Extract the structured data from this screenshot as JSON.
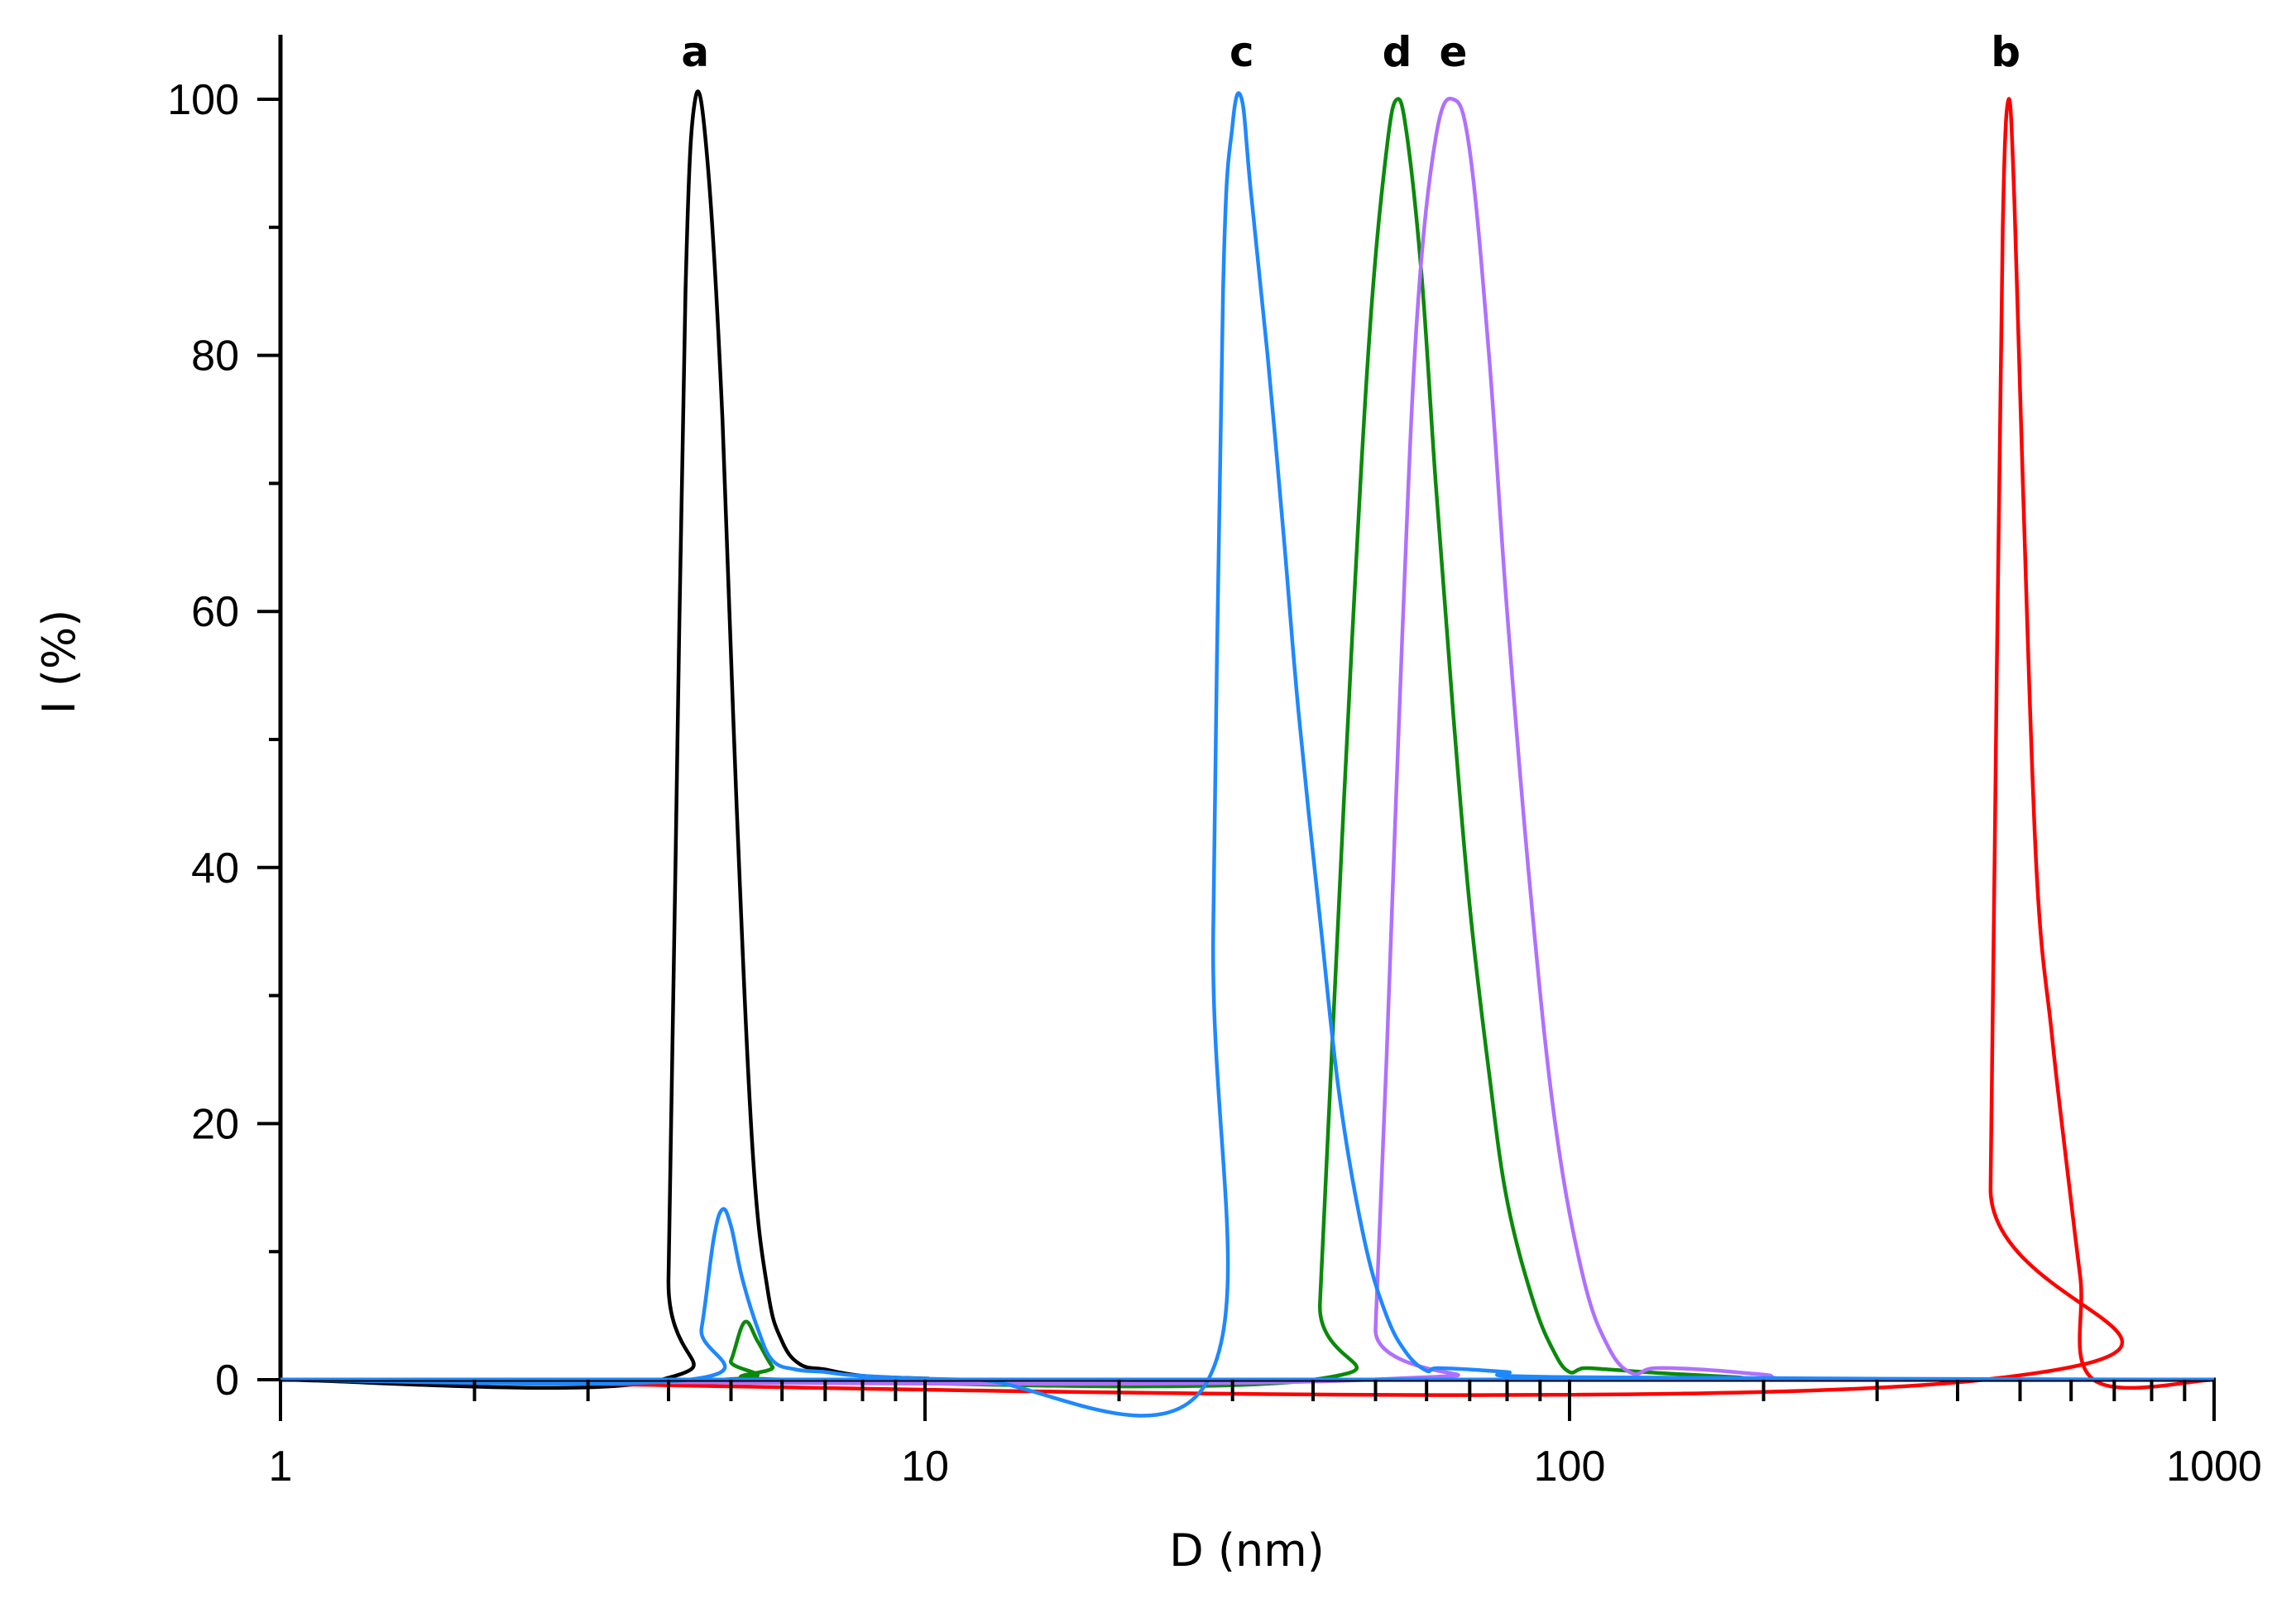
{
  "chart_data": {
    "type": "line",
    "title": "",
    "xlabel": "D (nm)",
    "ylabel": "I (%)",
    "xscale": "log",
    "xlim": [
      1,
      1000
    ],
    "ylim": [
      0,
      105
    ],
    "x_ticks": [
      1,
      10,
      100,
      1000
    ],
    "x_tick_labels": [
      "1",
      "10",
      "100",
      "1000"
    ],
    "y_ticks": [
      0,
      20,
      40,
      60,
      80,
      100
    ],
    "y_tick_labels": [
      "0",
      "20",
      "40",
      "60",
      "80",
      "100"
    ],
    "grid": false,
    "legend": null,
    "annotations": [
      {
        "text": "a",
        "x": 4.4
      },
      {
        "text": "c",
        "x": 31
      },
      {
        "text": "d",
        "x": 54
      },
      {
        "text": "e",
        "x": 66
      },
      {
        "text": "b",
        "x": 475
      }
    ],
    "series": [
      {
        "name": "a",
        "color": "#000000",
        "x": [
          1,
          3.9,
          4.0,
          4.1,
          4.25,
          4.4,
          4.6,
          4.85,
          5.1,
          5.4,
          5.7,
          6.0,
          6.4,
          7.0,
          8.0,
          10,
          14,
          1000
        ],
        "y": [
          0,
          0,
          8,
          40,
          85,
          100,
          95,
          75,
          45,
          18,
          7,
          3,
          1.2,
          0.8,
          0.3,
          0.1,
          0,
          0
        ]
      },
      {
        "name": "b",
        "color": "#ff0000",
        "x": [
          1,
          440,
          450,
          460,
          470,
          480,
          490,
          505,
          530,
          560,
          590,
          620,
          650,
          1000
        ],
        "y": [
          0,
          0,
          15,
          55,
          90,
          100,
          92,
          70,
          40,
          27,
          17,
          8,
          0,
          0
        ]
      },
      {
        "name": "c",
        "color": "#1e88ff",
        "x": [
          1,
          4.3,
          4.5,
          4.7,
          4.85,
          5.0,
          5.2,
          5.5,
          5.8,
          6.3,
          7.0,
          8.0,
          12,
          27.5,
          28,
          29,
          30,
          31,
          32,
          34,
          36,
          38,
          41,
          44,
          48,
          52,
          56,
          60,
          62,
          70,
          80,
          100,
          1000
        ],
        "y": [
          0,
          0,
          4,
          11,
          13.3,
          12,
          8,
          4,
          1.5,
          0.8,
          0.6,
          0.3,
          0,
          0,
          35,
          85,
          98,
          100,
          93,
          80,
          66,
          52,
          36,
          22,
          11,
          5,
          2,
          0.7,
          0.9,
          0.8,
          0.6,
          0.2,
          0
        ]
      },
      {
        "name": "d",
        "color": "#0a8a0a",
        "x": [
          1,
          4.8,
          5.0,
          5.25,
          5.5,
          5.8,
          6.1,
          40,
          41,
          43,
          46,
          49,
          52,
          54,
          56,
          59,
          62,
          66,
          70,
          75,
          80,
          88,
          95,
          100,
          105,
          115,
          140,
          180,
          230,
          1000
        ],
        "y": [
          0,
          0,
          1.5,
          4.5,
          3,
          1,
          0,
          0,
          6,
          28,
          58,
          82,
          96,
          100,
          97,
          86,
          70,
          52,
          37,
          24,
          14,
          6,
          2,
          0.6,
          0.9,
          0.8,
          0.5,
          0.2,
          0,
          0
        ]
      },
      {
        "name": "e",
        "color": "#b070ff",
        "x": [
          1,
          49,
          50,
          52,
          55,
          58,
          62,
          66,
          70,
          75,
          80,
          87,
          95,
          105,
          115,
          125,
          135,
          160,
          200,
          250,
          1000
        ],
        "y": [
          0,
          0,
          4,
          25,
          58,
          83,
          97,
          100,
          96,
          80,
          60,
          38,
          20,
          8,
          2.5,
          0.5,
          0.9,
          0.8,
          0.4,
          0,
          0
        ]
      }
    ]
  }
}
